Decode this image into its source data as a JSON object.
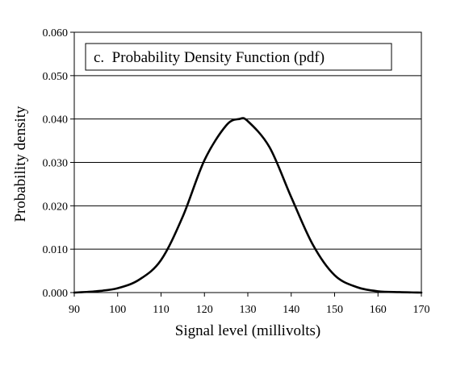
{
  "chart_data": {
    "type": "line",
    "title": "c.  Probability Density Function (pdf)",
    "xlabel": "Signal level (millivolts)",
    "ylabel": "Probability density",
    "xlim": [
      90,
      170
    ],
    "ylim": [
      0,
      0.06
    ],
    "grid": {
      "horizontal": true,
      "vertical": false
    },
    "x_ticks": [
      "90",
      "100",
      "110",
      "120",
      "130",
      "140",
      "150",
      "160",
      "170"
    ],
    "y_ticks": [
      "0.000",
      "0.010",
      "0.020",
      "0.030",
      "0.040",
      "0.050",
      "0.060"
    ],
    "series": [
      {
        "x": [
          90,
          95,
          100,
          105,
          110,
          115,
          120,
          125,
          128,
          130,
          135,
          140,
          145,
          150,
          155,
          160,
          165,
          170
        ],
        "y": [
          0.0,
          0.0003,
          0.001,
          0.003,
          0.0075,
          0.0175,
          0.0305,
          0.0385,
          0.04,
          0.0395,
          0.0335,
          0.022,
          0.011,
          0.004,
          0.0013,
          0.0003,
          0.0001,
          0.0
        ],
        "color": "#000000"
      }
    ]
  }
}
